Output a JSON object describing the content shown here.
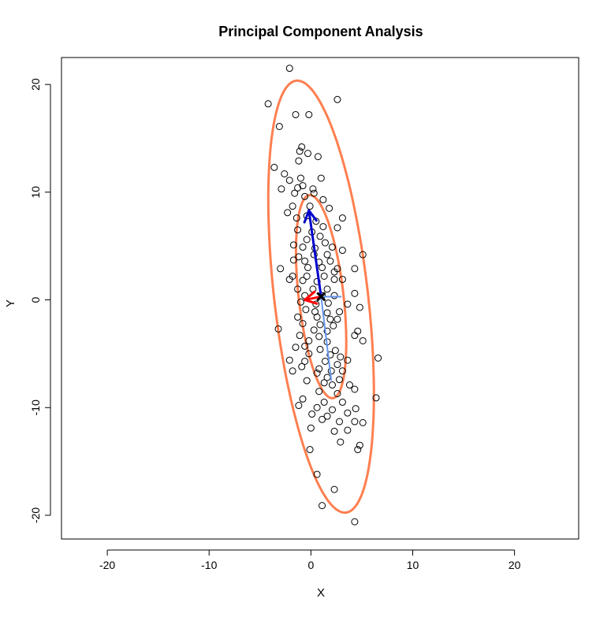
{
  "chart_data": {
    "type": "scatter",
    "title": "Principal Component Analysis",
    "xlabel": "X",
    "ylabel": "Y",
    "xlim": [
      -24.5,
      26.3
    ],
    "ylim": [
      -22.2,
      22.5
    ],
    "x_ticks": [
      -20,
      -10,
      0,
      10,
      20
    ],
    "y_ticks": [
      -20,
      -10,
      0,
      10,
      20
    ],
    "x_tick_labels": [
      "-20",
      "-10",
      "0",
      "10",
      "20"
    ],
    "y_tick_labels": [
      "-20",
      "-10",
      "0",
      "10",
      "20"
    ],
    "grid": false,
    "legend": "none",
    "colors": {
      "points": "#000000",
      "ellipses": "#ff7f50",
      "pc1_arrow": "#0000cd",
      "pc2_arrow": "#ff0000",
      "axis_projections": "#6495ed",
      "center_mark": "#000000"
    },
    "center": [
      1.0,
      0.3
    ],
    "ellipses": [
      {
        "center": [
          1.0,
          0.3
        ],
        "semi_major": 9.5,
        "semi_minor": 2.2,
        "angle_deg": 97
      },
      {
        "center": [
          1.0,
          0.3
        ],
        "semi_major": 20.2,
        "semi_minor": 4.6,
        "angle_deg": 97
      }
    ],
    "arrows": [
      {
        "name": "PC1",
        "from": [
          1.0,
          0.3
        ],
        "to": [
          -0.2,
          8.3
        ]
      },
      {
        "name": "PC2",
        "from": [
          1.0,
          0.3
        ],
        "to": [
          -0.6,
          0.0
        ]
      }
    ],
    "projection_lines": [
      {
        "from": [
          1.0,
          0.3
        ],
        "to": [
          3.0,
          0.3
        ]
      },
      {
        "from": [
          1.0,
          0.3
        ],
        "to": [
          2.0,
          -7.5
        ]
      }
    ],
    "points": [
      [
        -2.1,
        21.5
      ],
      [
        -4.2,
        18.2
      ],
      [
        -1.5,
        17.2
      ],
      [
        -0.2,
        17.2
      ],
      [
        2.6,
        18.6
      ],
      [
        -3.1,
        16.1
      ],
      [
        -0.9,
        14.2
      ],
      [
        -1.1,
        13.8
      ],
      [
        -0.3,
        13.6
      ],
      [
        0.7,
        13.3
      ],
      [
        -1.2,
        12.9
      ],
      [
        -3.6,
        12.3
      ],
      [
        -2.6,
        11.7
      ],
      [
        -2.1,
        11.1
      ],
      [
        -1.0,
        11.3
      ],
      [
        1.0,
        11.3
      ],
      [
        -1.3,
        10.4
      ],
      [
        -0.8,
        10.6
      ],
      [
        0.2,
        10.3
      ],
      [
        -2.9,
        10.3
      ],
      [
        -1.6,
        9.9
      ],
      [
        -0.6,
        9.6
      ],
      [
        0.3,
        9.9
      ],
      [
        -1.8,
        8.7
      ],
      [
        -0.1,
        8.7
      ],
      [
        1.2,
        9.3
      ],
      [
        1.8,
        8.5
      ],
      [
        -2.3,
        8.1
      ],
      [
        -1.4,
        7.6
      ],
      [
        -0.4,
        7.8
      ],
      [
        0.5,
        7.3
      ],
      [
        3.1,
        7.6
      ],
      [
        1.2,
        6.8
      ],
      [
        2.6,
        6.7
      ],
      [
        -1.3,
        6.5
      ],
      [
        0.1,
        6.3
      ],
      [
        0.9,
        5.9
      ],
      [
        -0.4,
        5.6
      ],
      [
        1.4,
        5.3
      ],
      [
        -1.7,
        5.1
      ],
      [
        -0.8,
        4.9
      ],
      [
        0.4,
        4.8
      ],
      [
        2.1,
        4.9
      ],
      [
        3.1,
        4.6
      ],
      [
        -1.2,
        4.0
      ],
      [
        0.3,
        4.2
      ],
      [
        1.6,
        4.2
      ],
      [
        5.1,
        4.2
      ],
      [
        -1.7,
        3.7
      ],
      [
        -0.6,
        3.6
      ],
      [
        0.8,
        3.5
      ],
      [
        1.9,
        3.6
      ],
      [
        -0.3,
        3.0
      ],
      [
        1.1,
        3.0
      ],
      [
        2.6,
        2.9
      ],
      [
        4.3,
        2.9
      ],
      [
        -3.0,
        2.9
      ],
      [
        -1.8,
        2.2
      ],
      [
        -0.4,
        2.2
      ],
      [
        1.3,
        2.2
      ],
      [
        2.3,
        2.6
      ],
      [
        -2.1,
        1.9
      ],
      [
        -0.8,
        1.8
      ],
      [
        0.6,
        1.7
      ],
      [
        2.3,
        1.9
      ],
      [
        3.1,
        1.9
      ],
      [
        -1.3,
        1.0
      ],
      [
        0.2,
        1.0
      ],
      [
        1.6,
        1.0
      ],
      [
        4.3,
        0.6
      ],
      [
        -0.6,
        0.4
      ],
      [
        1.1,
        0.4
      ],
      [
        2.3,
        0.4
      ],
      [
        -1.0,
        -0.2
      ],
      [
        0.5,
        -0.4
      ],
      [
        1.7,
        -0.3
      ],
      [
        3.6,
        -0.4
      ],
      [
        4.8,
        -0.7
      ],
      [
        -0.5,
        -0.9
      ],
      [
        0.4,
        -1.1
      ],
      [
        1.6,
        -1.2
      ],
      [
        2.8,
        -1.1
      ],
      [
        -1.3,
        -1.6
      ],
      [
        0.6,
        -1.6
      ],
      [
        1.9,
        -1.8
      ],
      [
        2.6,
        -1.8
      ],
      [
        -0.8,
        -2.2
      ],
      [
        0.9,
        -2.3
      ],
      [
        2.2,
        -2.4
      ],
      [
        -3.2,
        -2.7
      ],
      [
        0.3,
        -2.8
      ],
      [
        1.6,
        -2.9
      ],
      [
        4.6,
        -2.9
      ],
      [
        -1.1,
        -3.3
      ],
      [
        0.8,
        -3.4
      ],
      [
        4.3,
        -3.3
      ],
      [
        5.1,
        -3.8
      ],
      [
        -0.2,
        -3.8
      ],
      [
        1.6,
        -3.9
      ],
      [
        -1.5,
        -4.4
      ],
      [
        -0.6,
        -4.3
      ],
      [
        0.9,
        -4.6
      ],
      [
        2.4,
        -4.7
      ],
      [
        -0.2,
        -5.0
      ],
      [
        1.9,
        -5.1
      ],
      [
        2.9,
        -5.3
      ],
      [
        3.6,
        -5.6
      ],
      [
        -2.1,
        -5.6
      ],
      [
        -0.6,
        -5.7
      ],
      [
        1.4,
        -5.7
      ],
      [
        2.6,
        -6.0
      ],
      [
        6.6,
        -5.4
      ],
      [
        -0.9,
        -6.2
      ],
      [
        0.8,
        -6.4
      ],
      [
        2.0,
        -6.6
      ],
      [
        3.1,
        -6.6
      ],
      [
        -1.8,
        -6.6
      ],
      [
        0.6,
        -6.8
      ],
      [
        1.6,
        -7.2
      ],
      [
        2.8,
        -7.4
      ],
      [
        -0.4,
        -7.5
      ],
      [
        1.3,
        -7.7
      ],
      [
        2.1,
        -7.9
      ],
      [
        3.8,
        -7.9
      ],
      [
        0.8,
        -8.5
      ],
      [
        2.6,
        -8.7
      ],
      [
        4.3,
        -8.3
      ],
      [
        -0.8,
        -9.2
      ],
      [
        1.3,
        -9.5
      ],
      [
        3.1,
        -9.5
      ],
      [
        6.4,
        -9.1
      ],
      [
        -1.2,
        -9.8
      ],
      [
        0.6,
        -10.0
      ],
      [
        2.1,
        -10.2
      ],
      [
        4.4,
        -10.1
      ],
      [
        0.1,
        -10.6
      ],
      [
        1.6,
        -10.8
      ],
      [
        3.6,
        -10.5
      ],
      [
        1.1,
        -11.1
      ],
      [
        2.8,
        -11.3
      ],
      [
        4.3,
        -11.3
      ],
      [
        5.1,
        -11.4
      ],
      [
        0.0,
        -11.9
      ],
      [
        2.3,
        -12.2
      ],
      [
        3.6,
        -12.1
      ],
      [
        2.9,
        -13.2
      ],
      [
        4.8,
        -13.5
      ],
      [
        4.6,
        -13.9
      ],
      [
        -0.1,
        -13.9
      ],
      [
        0.6,
        -16.2
      ],
      [
        2.3,
        -17.6
      ],
      [
        1.1,
        -19.1
      ],
      [
        4.3,
        -20.6
      ]
    ]
  }
}
